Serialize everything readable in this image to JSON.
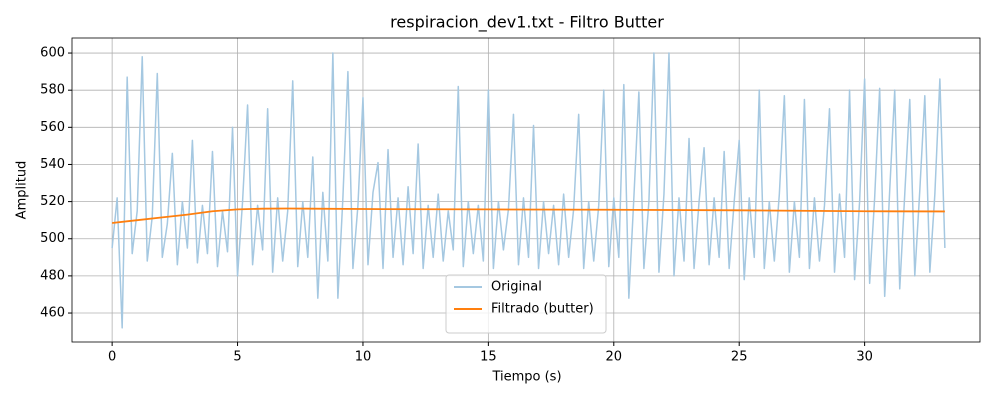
{
  "chart_data": {
    "type": "line",
    "title": "respiracion_dev1.txt - Filtro Butter",
    "xlabel": "Tiempo (s)",
    "ylabel": "Amplitud",
    "xlim": [
      -1.6,
      34.6
    ],
    "ylim": [
      444.4,
      608.1
    ],
    "xticks": [
      0,
      5,
      10,
      15,
      20,
      25,
      30
    ],
    "yticks": [
      460,
      480,
      500,
      520,
      540,
      560,
      580,
      600
    ],
    "grid": true,
    "legend": "lower center",
    "series": [
      {
        "name": "Original",
        "color": "#a5c8e1",
        "x": [
          0,
          0.2,
          0.4,
          0.6,
          0.8,
          1,
          1.2,
          1.4,
          1.6,
          1.8,
          2,
          2.2,
          2.4,
          2.6,
          2.8,
          3,
          3.2,
          3.4,
          3.6,
          3.8,
          4,
          4.2,
          4.4,
          4.6,
          4.8,
          5,
          5.2,
          5.4,
          5.6,
          5.8,
          6,
          6.2,
          6.4,
          6.6,
          6.8,
          7,
          7.2,
          7.4,
          7.6,
          7.8,
          8,
          8.2,
          8.4,
          8.6,
          8.8,
          9,
          9.2,
          9.4,
          9.6,
          9.8,
          10,
          10.2,
          10.4,
          10.6,
          10.8,
          11,
          11.2,
          11.4,
          11.6,
          11.8,
          12,
          12.2,
          12.4,
          12.6,
          12.8,
          13,
          13.2,
          13.4,
          13.6,
          13.8,
          14,
          14.2,
          14.4,
          14.6,
          14.8,
          15,
          15.2,
          15.4,
          15.6,
          15.8,
          16,
          16.2,
          16.4,
          16.6,
          16.8,
          17,
          17.2,
          17.4,
          17.6,
          17.8,
          18,
          18.2,
          18.4,
          18.6,
          18.8,
          19,
          19.2,
          19.4,
          19.6,
          19.8,
          20,
          20.2,
          20.4,
          20.6,
          20.8,
          21,
          21.2,
          21.4,
          21.6,
          21.8,
          22,
          22.2,
          22.4,
          22.6,
          22.8,
          23,
          23.2,
          23.4,
          23.6,
          23.8,
          24,
          24.2,
          24.4,
          24.6,
          24.8,
          25,
          25.2,
          25.4,
          25.6,
          25.8,
          26,
          26.2,
          26.4,
          26.6,
          26.8,
          27,
          27.2,
          27.4,
          27.6,
          27.8,
          28,
          28.2,
          28.4,
          28.6,
          28.8,
          29,
          29.2,
          29.4,
          29.6,
          29.8,
          30,
          30.2,
          30.4,
          30.6,
          30.8,
          31,
          31.2,
          31.4,
          31.6,
          31.8,
          32,
          32.2,
          32.4,
          32.6,
          32.8,
          33,
          33.2
        ],
        "values": [
          495,
          522,
          452,
          587,
          492,
          515,
          598,
          488,
          512,
          589,
          490,
          508,
          546,
          486,
          520,
          495,
          553,
          487,
          518,
          492,
          547,
          485,
          515,
          493,
          560,
          480,
          520,
          572,
          486,
          518,
          494,
          570,
          482,
          522,
          488,
          515,
          585,
          485,
          520,
          490,
          544,
          468,
          525,
          488,
          600,
          468,
          522,
          590,
          484,
          518,
          576,
          486,
          525,
          541,
          484,
          548,
          490,
          522,
          486,
          528,
          492,
          551,
          484,
          518,
          490,
          524,
          488,
          515,
          494,
          582,
          485,
          520,
          492,
          518,
          488,
          580,
          484,
          520,
          494,
          516,
          567,
          486,
          522,
          490,
          561,
          484,
          520,
          492,
          518,
          486,
          524,
          490,
          516,
          567,
          484,
          520,
          488,
          518,
          580,
          485,
          522,
          490,
          583,
          468,
          522,
          579,
          484,
          520,
          600,
          482,
          524,
          600,
          480,
          522,
          488,
          554,
          484,
          520,
          549,
          486,
          522,
          490,
          547,
          484,
          520,
          553,
          478,
          522,
          490,
          580,
          484,
          520,
          488,
          524,
          577,
          482,
          520,
          490,
          575,
          484,
          522,
          488,
          518,
          570,
          482,
          524,
          490,
          580,
          478,
          520,
          586,
          476,
          522,
          581,
          469,
          526,
          580,
          473,
          524,
          575,
          480,
          526,
          577,
          482,
          524,
          586,
          495
        ]
      },
      {
        "name": "Filtrado (butter)",
        "color": "#ff7f0e",
        "x": [
          0,
          1,
          2,
          3,
          4,
          5,
          6,
          7,
          8,
          10,
          15,
          20,
          25,
          30,
          33.2
        ],
        "values": [
          508.5,
          510,
          511.5,
          513,
          514.8,
          515.8,
          516.2,
          516.3,
          516.2,
          516,
          515.8,
          515.6,
          515.3,
          514.8,
          514.7
        ]
      }
    ]
  }
}
